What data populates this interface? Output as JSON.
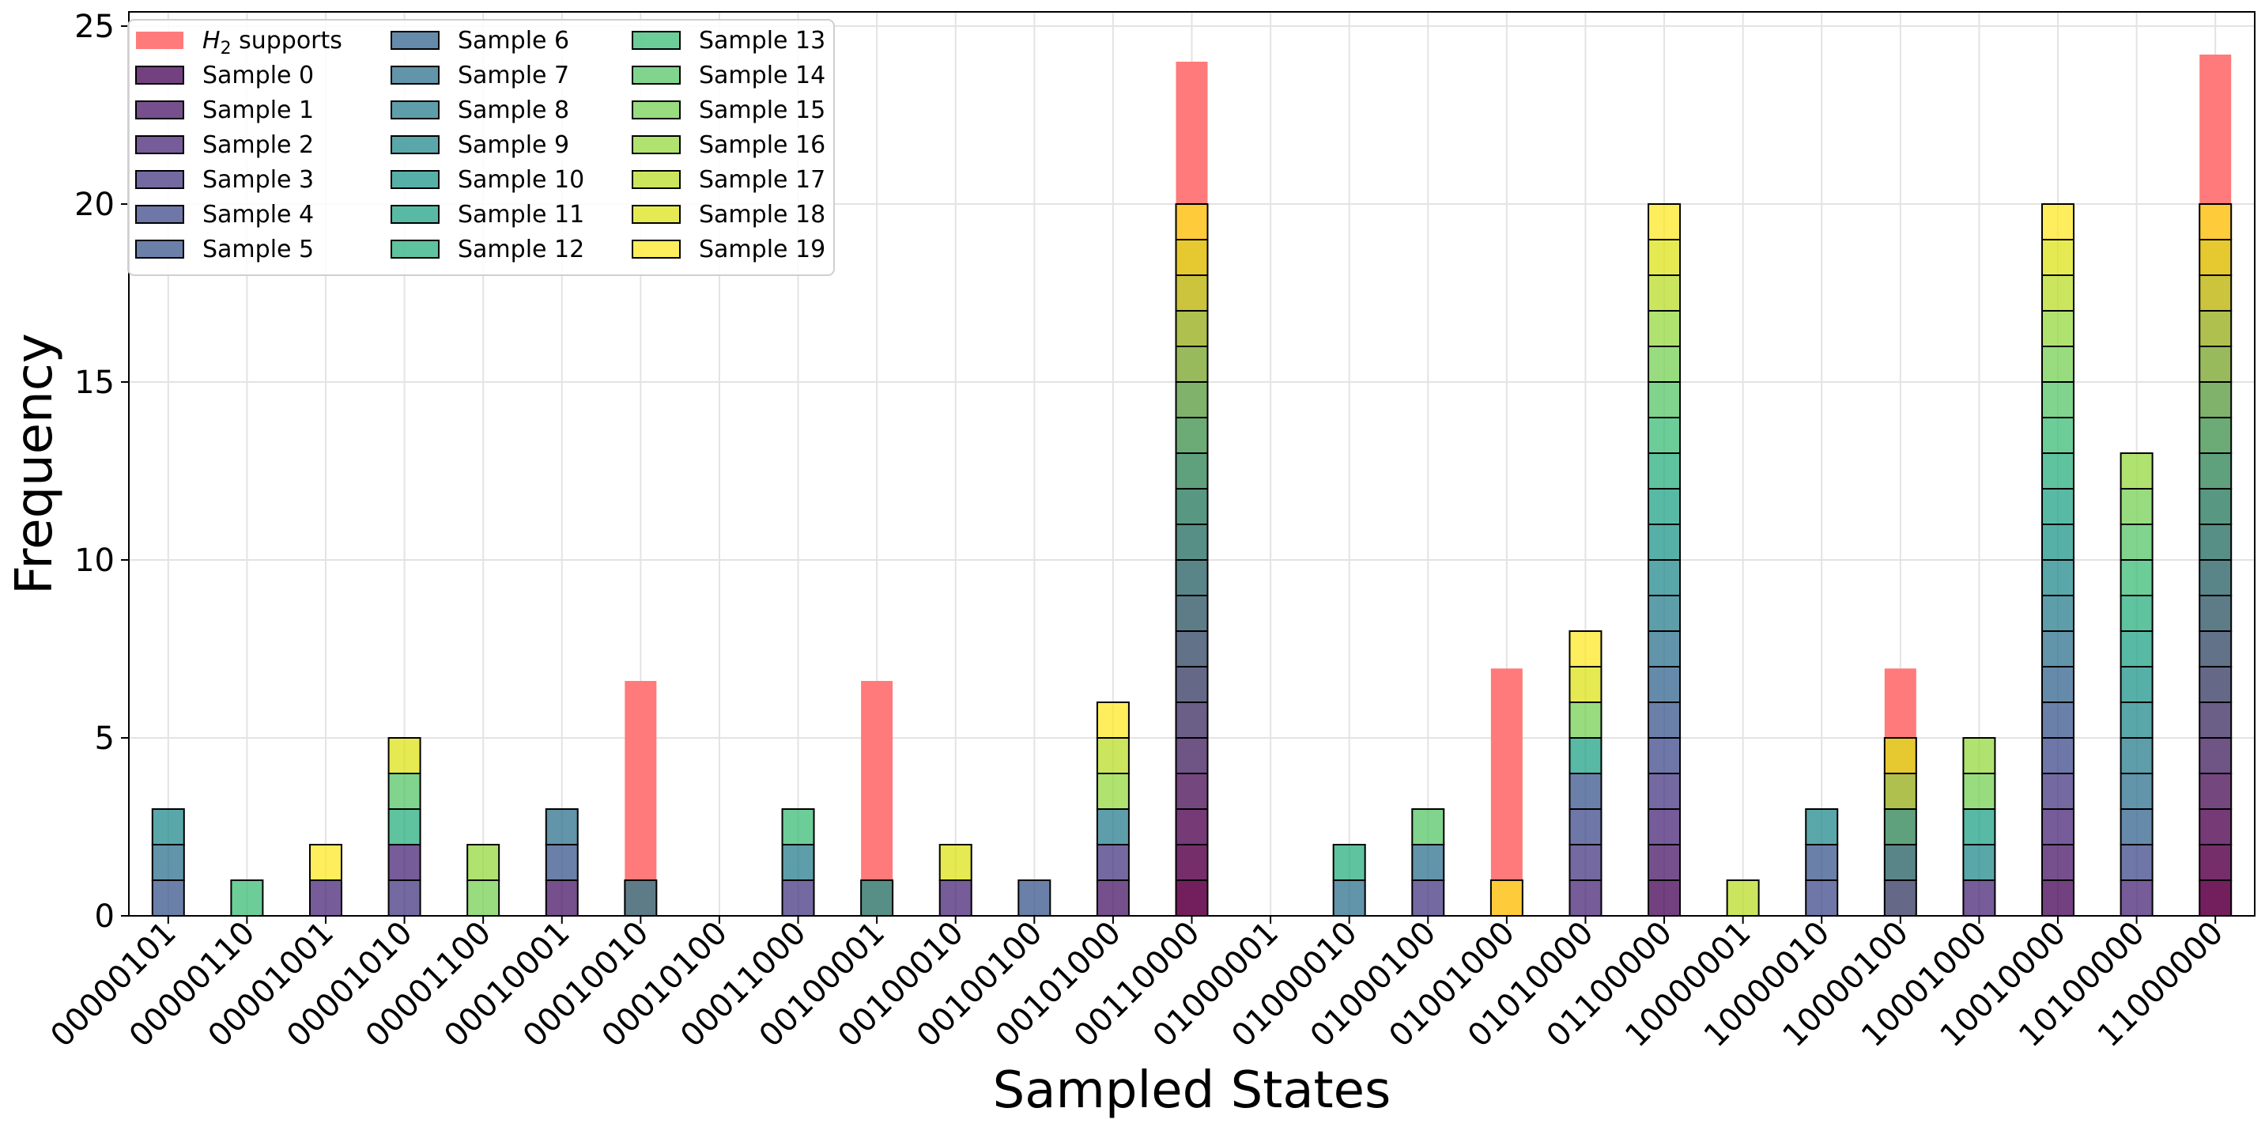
{
  "chart_data": {
    "type": "bar",
    "stacked": true,
    "title": "",
    "xlabel": "Sampled States",
    "ylabel": "Frequency",
    "ylim": [
      0,
      25.4
    ],
    "yticks": [
      0,
      5,
      10,
      15,
      20,
      25
    ],
    "grid": true,
    "legend_position": "top-left",
    "categories": [
      "00000101",
      "00000110",
      "00001001",
      "00001010",
      "00001100",
      "00010001",
      "00010010",
      "00010100",
      "00011000",
      "00100001",
      "00100010",
      "00100100",
      "00101000",
      "00110000",
      "01000001",
      "01000010",
      "01000100",
      "01001000",
      "01010000",
      "01100000",
      "10000001",
      "10000010",
      "10000100",
      "10001000",
      "10010000",
      "10100000",
      "11000000"
    ],
    "support": {
      "name": "H2 supports",
      "legend_label_main": "H",
      "legend_label_sub": "2",
      "legend_label_rest": " supports",
      "color": "#ff7a7a",
      "values": [
        0,
        0,
        0,
        0,
        0,
        0,
        6.6,
        0,
        0,
        6.6,
        0,
        0,
        0,
        24.0,
        0,
        0,
        0,
        6.95,
        0,
        0,
        0,
        0,
        6.95,
        0,
        0,
        0,
        24.2
      ]
    },
    "samples": [
      {
        "name": "Sample 0",
        "color": "#440154"
      },
      {
        "name": "Sample 1",
        "color": "#481567"
      },
      {
        "name": "Sample 2",
        "color": "#482677"
      },
      {
        "name": "Sample 3",
        "color": "#453781"
      },
      {
        "name": "Sample 4",
        "color": "#3e4989"
      },
      {
        "name": "Sample 5",
        "color": "#39568c"
      },
      {
        "name": "Sample 6",
        "color": "#33638d"
      },
      {
        "name": "Sample 7",
        "color": "#2d708e"
      },
      {
        "name": "Sample 8",
        "color": "#287d8e"
      },
      {
        "name": "Sample 9",
        "color": "#238a8d"
      },
      {
        "name": "Sample 10",
        "color": "#1f968b"
      },
      {
        "name": "Sample 11",
        "color": "#20a386"
      },
      {
        "name": "Sample 12",
        "color": "#29af7f"
      },
      {
        "name": "Sample 13",
        "color": "#3cbc75"
      },
      {
        "name": "Sample 14",
        "color": "#56c667"
      },
      {
        "name": "Sample 15",
        "color": "#75d054"
      },
      {
        "name": "Sample 16",
        "color": "#95d840"
      },
      {
        "name": "Sample 17",
        "color": "#bade28"
      },
      {
        "name": "Sample 18",
        "color": "#dde318"
      },
      {
        "name": "Sample 19",
        "color": "#fde725"
      }
    ],
    "stacks": [
      [
        5,
        7,
        9
      ],
      [
        13
      ],
      [
        2,
        19
      ],
      [
        3,
        2,
        12,
        14,
        18
      ],
      [
        15,
        16
      ],
      [
        1,
        5,
        7
      ],
      [
        8
      ],
      [],
      [
        3,
        8,
        13
      ],
      [
        10
      ],
      [
        2,
        18
      ],
      [
        5
      ],
      [
        1,
        3,
        8,
        16,
        17,
        19
      ],
      [
        0,
        1,
        2,
        3,
        4,
        5,
        6,
        7,
        8,
        9,
        10,
        11,
        12,
        13,
        14,
        15,
        16,
        17,
        18,
        19
      ],
      [],
      [
        7,
        12
      ],
      [
        3,
        7,
        14
      ],
      [
        19
      ],
      [
        2,
        3,
        4,
        5,
        11,
        15,
        18,
        19
      ],
      [
        0,
        1,
        2,
        3,
        4,
        5,
        6,
        7,
        8,
        9,
        10,
        11,
        12,
        13,
        14,
        15,
        16,
        17,
        18,
        19
      ],
      [
        17
      ],
      [
        4,
        5,
        9
      ],
      [
        6,
        9,
        12,
        16,
        18
      ],
      [
        2,
        9,
        11,
        15,
        16
      ],
      [
        0,
        1,
        2,
        3,
        4,
        5,
        6,
        7,
        8,
        9,
        10,
        11,
        12,
        13,
        14,
        15,
        16,
        17,
        18,
        19
      ],
      [
        2,
        4,
        6,
        7,
        8,
        9,
        10,
        11,
        12,
        13,
        14,
        15,
        16
      ],
      [
        0,
        1,
        2,
        3,
        4,
        5,
        6,
        7,
        8,
        9,
        10,
        11,
        12,
        13,
        14,
        15,
        16,
        17,
        18,
        19
      ]
    ]
  }
}
